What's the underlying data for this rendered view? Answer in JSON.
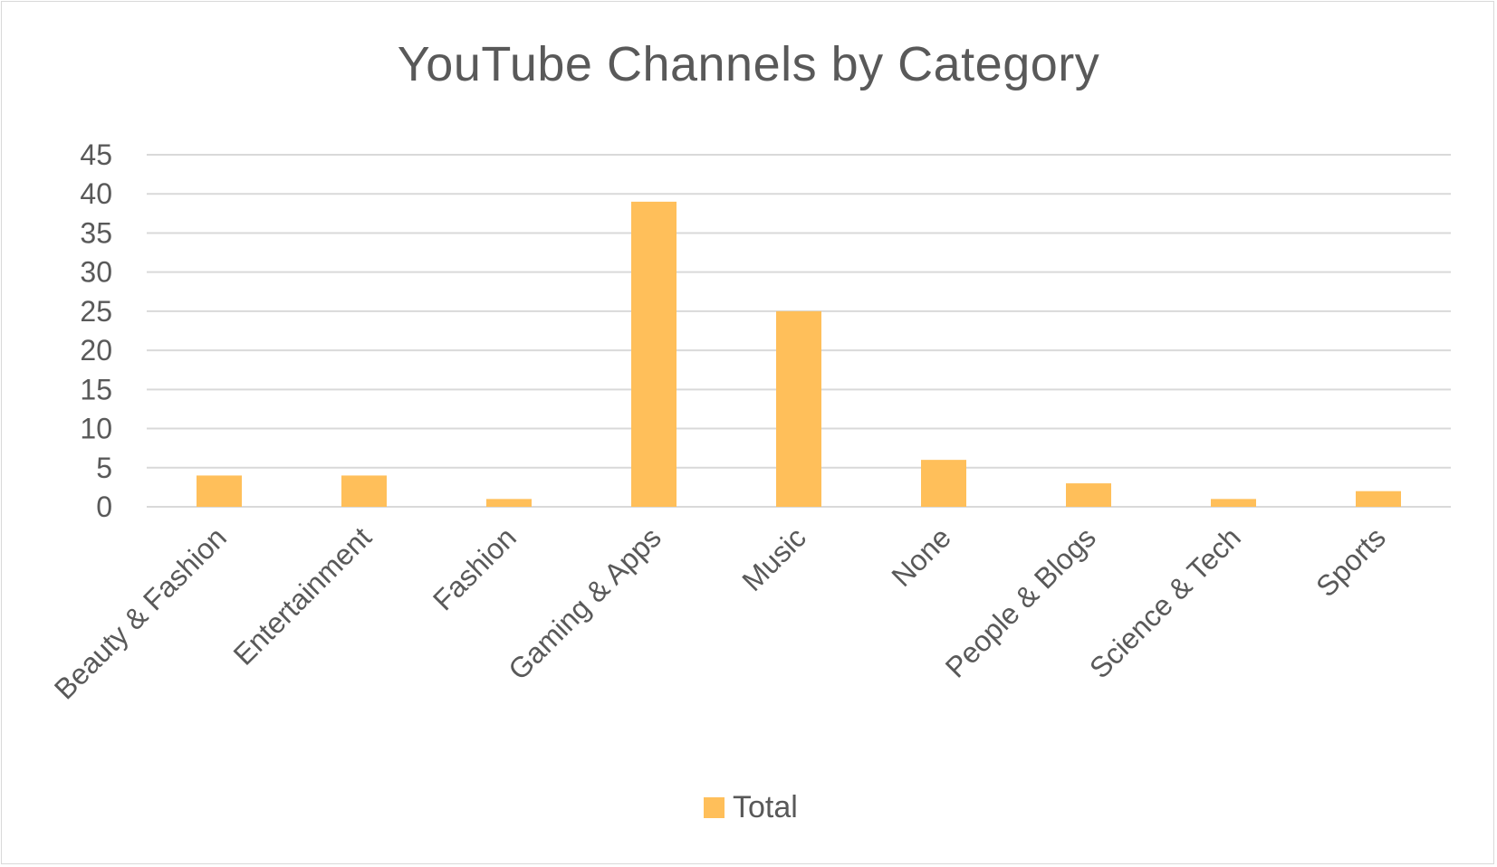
{
  "chart_data": {
    "type": "bar",
    "title": "YouTube Channels by Category",
    "categories": [
      "Beauty & Fashion",
      "Entertainment",
      "Fashion",
      "Gaming & Apps",
      "Music",
      "None",
      "People & Blogs",
      "Science & Tech",
      "Sports"
    ],
    "series": [
      {
        "name": "Total",
        "values": [
          4,
          4,
          1,
          39,
          25,
          6,
          3,
          1,
          2
        ]
      }
    ],
    "xlabel": "",
    "ylabel": "",
    "ylim": [
      0,
      45
    ],
    "yticks": [
      0,
      5,
      10,
      15,
      20,
      25,
      30,
      35,
      40,
      45
    ],
    "grid": true,
    "legend_position": "bottom",
    "colors": {
      "bar": "#ffbf5a",
      "grid": "#d9d9d9",
      "text": "#595959"
    }
  }
}
